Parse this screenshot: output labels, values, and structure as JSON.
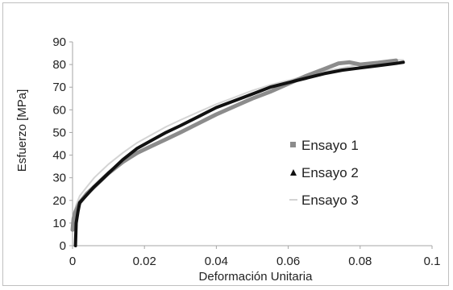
{
  "chart_data": {
    "type": "line",
    "title": "",
    "xlabel": "Deformación Unitaria",
    "ylabel": "Esfuerzo [MPa]",
    "xlim": [
      0,
      0.1
    ],
    "ylim": [
      0,
      90
    ],
    "xticks": [
      0,
      0.02,
      0.04,
      0.06,
      0.08,
      0.1
    ],
    "xtick_labels": [
      "0",
      "0.02",
      "0.04",
      "0.06",
      "0.08",
      "0.1"
    ],
    "yticks": [
      0,
      10,
      20,
      30,
      40,
      50,
      60,
      70,
      80,
      90
    ],
    "ytick_labels": [
      "0",
      "10",
      "20",
      "30",
      "40",
      "50",
      "60",
      "70",
      "80",
      "90"
    ],
    "grid": false,
    "legend_position": "center-right",
    "series": [
      {
        "name": "Ensayo 1",
        "marker": "square",
        "color": "#8c8c8c",
        "x": [
          0.0,
          0.0003,
          0.0008,
          0.002,
          0.004,
          0.006,
          0.008,
          0.01,
          0.014,
          0.018,
          0.022,
          0.026,
          0.03,
          0.035,
          0.04,
          0.045,
          0.05,
          0.055,
          0.06,
          0.065,
          0.07,
          0.074,
          0.077,
          0.08,
          0.085,
          0.09
        ],
        "y": [
          7,
          12,
          15,
          19,
          23,
          26,
          29,
          32,
          37,
          41,
          44,
          47,
          50,
          54,
          58,
          61.5,
          65,
          68,
          71.5,
          75,
          78,
          80.5,
          81,
          80,
          80.8,
          81.8
        ]
      },
      {
        "name": "Ensayo 2",
        "marker": "triangle",
        "color": "#111111",
        "x": [
          0.0008,
          0.001,
          0.0015,
          0.002,
          0.004,
          0.006,
          0.008,
          0.01,
          0.014,
          0.018,
          0.022,
          0.026,
          0.03,
          0.035,
          0.04,
          0.045,
          0.05,
          0.055,
          0.06,
          0.065,
          0.07,
          0.075,
          0.08,
          0.085,
          0.09,
          0.092
        ],
        "y": [
          0,
          10,
          15,
          19,
          22.5,
          26,
          29,
          32,
          38,
          43,
          46.5,
          50,
          53,
          57,
          61,
          64,
          67,
          70,
          72,
          74,
          76,
          77.5,
          78.5,
          79.5,
          80.5,
          81
        ]
      },
      {
        "name": "Ensayo 3",
        "marker": "dash",
        "color": "#d4d4d4",
        "x": [
          0.0,
          0.0003,
          0.001,
          0.002,
          0.004,
          0.006,
          0.008,
          0.01,
          0.014,
          0.018,
          0.022,
          0.026,
          0.03,
          0.035,
          0.04,
          0.045,
          0.05,
          0.055,
          0.06,
          0.065,
          0.07,
          0.075,
          0.08,
          0.085,
          0.09,
          0.092
        ],
        "y": [
          8,
          14,
          18,
          22,
          26,
          30,
          33,
          36,
          41,
          45.5,
          49,
          52.5,
          55.5,
          59,
          62.5,
          65.5,
          68.5,
          71,
          73,
          75,
          77,
          78.5,
          80,
          81,
          82,
          82
        ]
      }
    ]
  }
}
